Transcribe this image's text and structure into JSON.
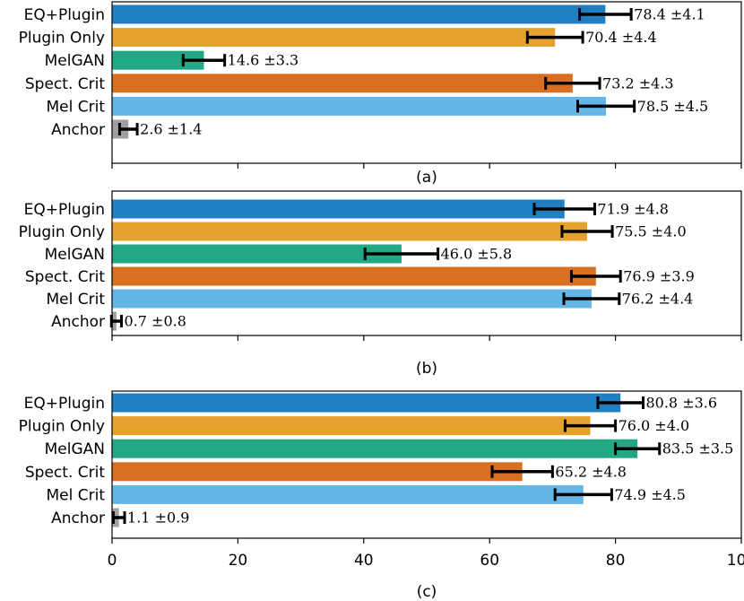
{
  "chart_data": [
    {
      "type": "bar",
      "orientation": "horizontal",
      "panel_label": "(a)",
      "categories": [
        "EQ+Plugin",
        "Plugin Only",
        "MelGAN",
        "Spect. Crit",
        "Mel Crit",
        "Anchor"
      ],
      "values": [
        78.4,
        70.4,
        14.6,
        73.2,
        78.5,
        2.6
      ],
      "errors": [
        4.1,
        4.4,
        3.3,
        4.3,
        4.5,
        1.4
      ],
      "labels": [
        "78.4 ±4.1",
        "70.4 ±4.4",
        "14.6 ±3.3",
        "73.2 ±4.3",
        "78.5 ±4.5",
        "2.6 ±1.4"
      ],
      "xlim": [
        0,
        100
      ]
    },
    {
      "type": "bar",
      "orientation": "horizontal",
      "panel_label": "(b)",
      "categories": [
        "EQ+Plugin",
        "Plugin Only",
        "MelGAN",
        "Spect. Crit",
        "Mel Crit",
        "Anchor"
      ],
      "values": [
        71.9,
        75.5,
        46.0,
        76.9,
        76.2,
        0.7
      ],
      "errors": [
        4.8,
        4.0,
        5.8,
        3.9,
        4.4,
        0.8
      ],
      "labels": [
        "71.9 ±4.8",
        "75.5 ±4.0",
        "46.0 ±5.8",
        "76.9 ±3.9",
        "76.2 ±4.4",
        "0.7 ±0.8"
      ],
      "xlim": [
        0,
        100
      ]
    },
    {
      "type": "bar",
      "orientation": "horizontal",
      "panel_label": "(c)",
      "categories": [
        "EQ+Plugin",
        "Plugin Only",
        "MelGAN",
        "Spect. Crit",
        "Mel Crit",
        "Anchor"
      ],
      "values": [
        80.8,
        76.0,
        83.5,
        65.2,
        74.9,
        1.1
      ],
      "errors": [
        3.6,
        4.0,
        3.5,
        4.8,
        4.5,
        0.9
      ],
      "labels": [
        "80.8 ±3.6",
        "76.0 ±4.0",
        "83.5 ±3.5",
        "65.2 ±4.8",
        "74.9 ±4.5",
        "1.1 ±0.9"
      ],
      "xlim": [
        0,
        100
      ],
      "xticks": [
        0,
        20,
        40,
        60,
        80,
        100
      ],
      "xtick_labels": [
        "0",
        "20",
        "40",
        "60",
        "80",
        "100"
      ]
    }
  ],
  "colors": [
    "#1f7fc0",
    "#e6a22e",
    "#22a884",
    "#d97021",
    "#63b6e6",
    "#a0a0a0"
  ]
}
